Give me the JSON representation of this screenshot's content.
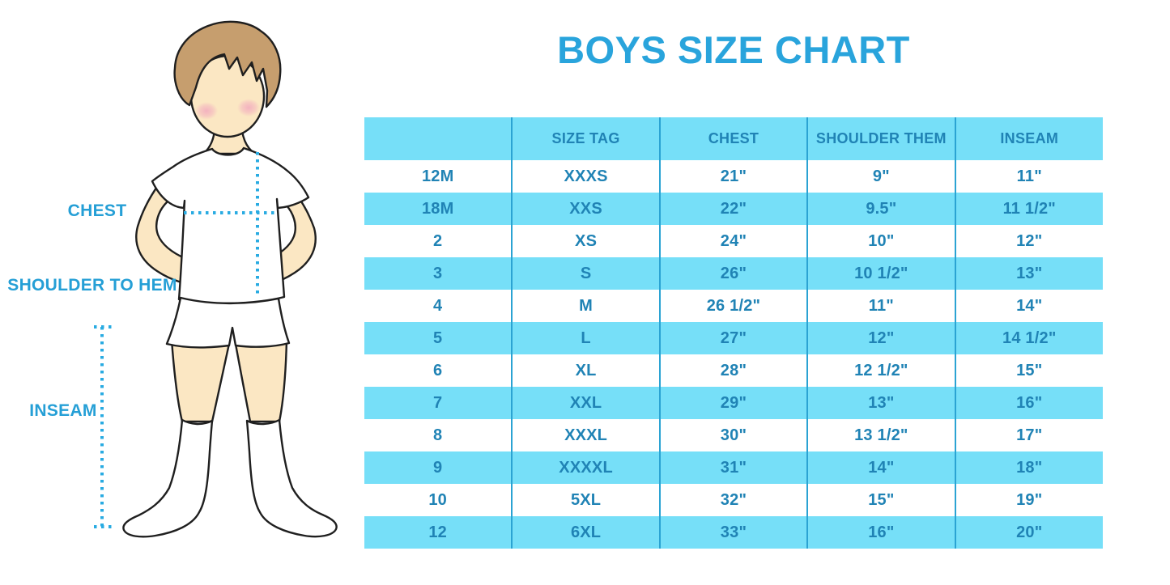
{
  "title": "BOYS SIZE CHART",
  "colors": {
    "accent_blue": "#29a4dc",
    "label_blue": "#259fd6",
    "table_fill_cyan": "#76dff8",
    "table_text_blue": "#2083b5",
    "table_divider_blue": "#2ba3d3",
    "dotted_line_blue": "#29abe2",
    "skin": "#fbe7c3",
    "hair": "#c69e6e"
  },
  "figure": {
    "labels": {
      "chest": "CHEST",
      "shoulder_to_hem": "SHOULDER TO HEM",
      "inseam": "INSEAM"
    }
  },
  "chart_data": {
    "type": "table",
    "title": "BOYS SIZE CHART",
    "headers": [
      "",
      "SIZE TAG",
      "CHEST",
      "SHOULDER THEM",
      "INSEAM"
    ],
    "rows": [
      [
        "12M",
        "XXXS",
        "21\"",
        "9\"",
        "11\""
      ],
      [
        "18M",
        "XXS",
        "22\"",
        "9.5\"",
        "11 1/2\""
      ],
      [
        "2",
        "XS",
        "24\"",
        "10\"",
        "12\""
      ],
      [
        "3",
        "S",
        "26\"",
        "10 1/2\"",
        "13\""
      ],
      [
        "4",
        "M",
        "26 1/2\"",
        "11\"",
        "14\""
      ],
      [
        "5",
        "L",
        "27\"",
        "12\"",
        "14 1/2\""
      ],
      [
        "6",
        "XL",
        "28\"",
        "12 1/2\"",
        "15\""
      ],
      [
        "7",
        "XXL",
        "29\"",
        "13\"",
        "16\""
      ],
      [
        "8",
        "XXXL",
        "30\"",
        "13 1/2\"",
        "17\""
      ],
      [
        "9",
        "XXXXL",
        "31\"",
        "14\"",
        "18\""
      ],
      [
        "10",
        "5XL",
        "32\"",
        "15\"",
        "19\""
      ],
      [
        "12",
        "6XL",
        "33\"",
        "16\"",
        "20\""
      ]
    ],
    "layout": {
      "grid": false,
      "striped_rows": true,
      "header_row_fill": "cyan"
    }
  }
}
